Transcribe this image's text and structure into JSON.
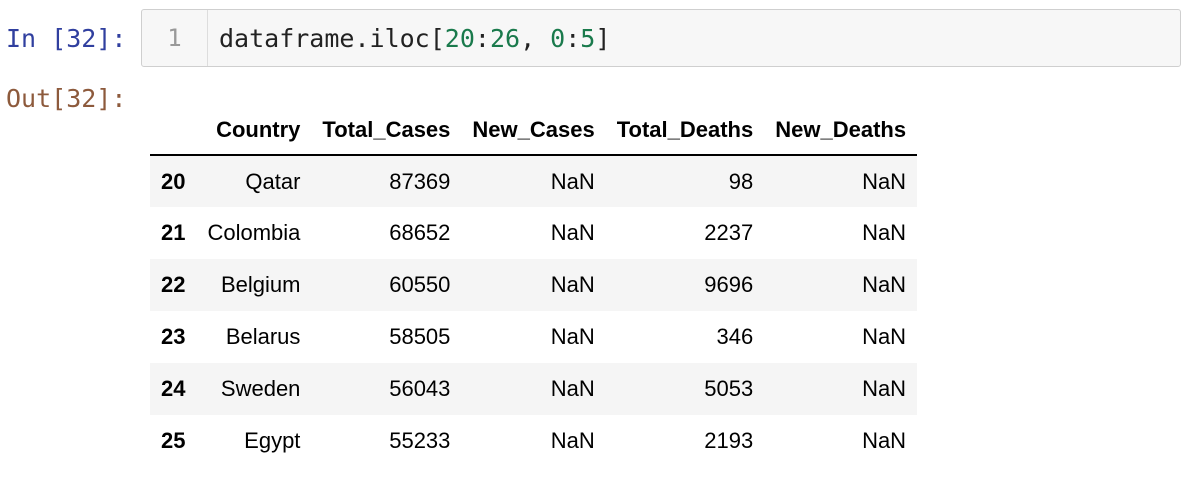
{
  "input_prompt": "In [32]:",
  "output_prompt": "Out[32]:",
  "code_cell": {
    "line_number": "1",
    "code_prefix": "dataframe.iloc[",
    "code_n1": "20",
    "code_sep1": ":",
    "code_n2": "26",
    "code_sep2": ", ",
    "code_n3": "0",
    "code_sep3": ":",
    "code_n4": "5",
    "code_suffix": "]"
  },
  "table": {
    "columns": [
      "",
      "Country",
      "Total_Cases",
      "New_Cases",
      "Total_Deaths",
      "New_Deaths"
    ],
    "rows": [
      {
        "index": "20",
        "cells": [
          "Qatar",
          "87369",
          "NaN",
          "98",
          "NaN"
        ]
      },
      {
        "index": "21",
        "cells": [
          "Colombia",
          "68652",
          "NaN",
          "2237",
          "NaN"
        ]
      },
      {
        "index": "22",
        "cells": [
          "Belgium",
          "60550",
          "NaN",
          "9696",
          "NaN"
        ]
      },
      {
        "index": "23",
        "cells": [
          "Belarus",
          "58505",
          "NaN",
          "346",
          "NaN"
        ]
      },
      {
        "index": "24",
        "cells": [
          "Sweden",
          "56043",
          "NaN",
          "5053",
          "NaN"
        ]
      },
      {
        "index": "25",
        "cells": [
          "Egypt",
          "55233",
          "NaN",
          "2193",
          "NaN"
        ]
      }
    ]
  }
}
